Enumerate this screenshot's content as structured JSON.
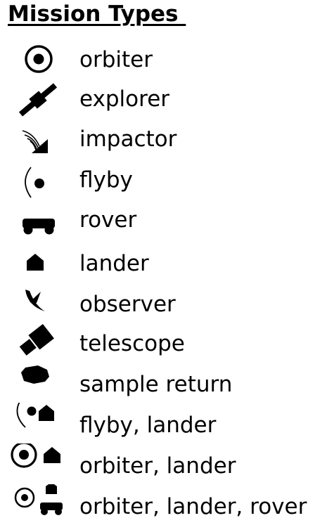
{
  "legend": {
    "title": "Mission Types ",
    "items": [
      {
        "label": "orbiter",
        "icon": "orbiter-icon"
      },
      {
        "label": "explorer",
        "icon": "explorer-satellite-icon"
      },
      {
        "label": "impactor",
        "icon": "impactor-icon"
      },
      {
        "label": "flyby",
        "icon": "flyby-icon"
      },
      {
        "label": "rover",
        "icon": "rover-icon"
      },
      {
        "label": "lander",
        "icon": "lander-icon"
      },
      {
        "label": "observer",
        "icon": "observer-dish-icon"
      },
      {
        "label": "telescope",
        "icon": "telescope-icon"
      },
      {
        "label": "sample return",
        "icon": "sample-return-icon"
      },
      {
        "label": "flyby, lander",
        "icon": "flyby-lander-icon"
      },
      {
        "label": "orbiter, lander",
        "icon": "orbiter-lander-icon"
      },
      {
        "label": "orbiter, lander, rover",
        "icon": "orbiter-lander-rover-icon"
      }
    ]
  }
}
